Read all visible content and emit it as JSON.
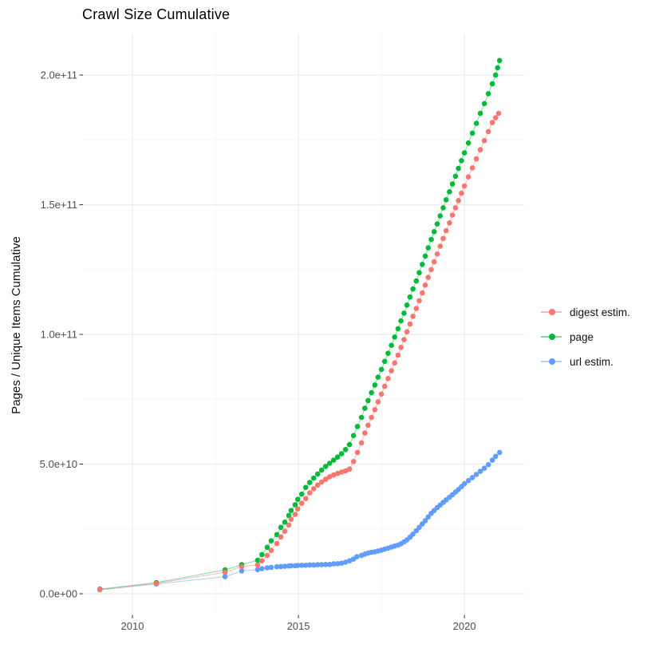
{
  "page": {
    "background": "#ffffff"
  },
  "chart_data": {
    "type": "scatter",
    "title": "Crawl Size Cumulative",
    "xlabel": "",
    "ylabel": "Pages / Unique Items Cumulative",
    "value_unit": "billions (1e9) of pages / unique items",
    "grid": true,
    "legend_position": "right",
    "x_axis": {
      "lim": [
        2008.51,
        2021.8
      ],
      "ticks": [
        {
          "v": 2010,
          "label": "2010"
        },
        {
          "v": 2015,
          "label": "2015"
        },
        {
          "v": 2020,
          "label": "2020"
        }
      ],
      "minor": [
        2012.5,
        2017.5
      ]
    },
    "y_axis": {
      "lim": [
        -8,
        215.7
      ],
      "ticks": [
        {
          "v": 0,
          "label": "0.0e+00"
        },
        {
          "v": 50,
          "label": "5.0e+10"
        },
        {
          "v": 100,
          "label": "1.0e+11"
        },
        {
          "v": 150,
          "label": "1.5e+11"
        },
        {
          "v": 200,
          "label": "2.0e+11"
        }
      ],
      "minor": [
        25,
        75,
        125,
        175
      ]
    },
    "colors": {
      "digest": "#F8766D",
      "page": "#00BA38",
      "url": "#619CFF",
      "grid_major": "#EBEBEB",
      "grid_minor": "#F3F3F3",
      "axis_text": "#4D4D4D",
      "tick_mark": "#333333"
    },
    "series": [
      {
        "name": "digest estim.",
        "color": "#F8766D",
        "points": [
          [
            2009.02,
            1.6
          ],
          [
            2010.72,
            4.0
          ],
          [
            2012.79,
            8.3
          ],
          [
            2013.29,
            10.5
          ],
          [
            2013.77,
            11.1
          ],
          [
            2013.9,
            12.7
          ],
          [
            2014.06,
            14.8
          ],
          [
            2014.18,
            16.7
          ],
          [
            2014.35,
            19.4
          ],
          [
            2014.47,
            21.9
          ],
          [
            2014.59,
            24.1
          ],
          [
            2014.71,
            26.5
          ],
          [
            2014.78,
            28.7
          ],
          [
            2014.9,
            30.6
          ],
          [
            2014.98,
            32.7
          ],
          [
            2015.1,
            34.9
          ],
          [
            2015.22,
            36.7
          ],
          [
            2015.34,
            38.9
          ],
          [
            2015.46,
            40.5
          ],
          [
            2015.58,
            41.9
          ],
          [
            2015.7,
            43.1
          ],
          [
            2015.82,
            44.2
          ],
          [
            2015.94,
            45.1
          ],
          [
            2016.06,
            45.8
          ],
          [
            2016.18,
            46.4
          ],
          [
            2016.3,
            46.9
          ],
          [
            2016.42,
            47.4
          ],
          [
            2016.54,
            48.1
          ],
          [
            2016.66,
            51.0
          ],
          [
            2016.78,
            54.5
          ],
          [
            2016.9,
            58.2
          ],
          [
            2017.0,
            62.0
          ],
          [
            2017.1,
            65.0
          ],
          [
            2017.2,
            68.0
          ],
          [
            2017.3,
            71.0
          ],
          [
            2017.4,
            74.0
          ],
          [
            2017.5,
            77.0
          ],
          [
            2017.6,
            80.0
          ],
          [
            2017.7,
            83.0
          ],
          [
            2017.8,
            86.0
          ],
          [
            2017.9,
            89.0
          ],
          [
            2018.0,
            92.0
          ],
          [
            2018.09,
            95.0
          ],
          [
            2018.18,
            98.0
          ],
          [
            2018.27,
            101.0
          ],
          [
            2018.36,
            104.0
          ],
          [
            2018.45,
            107.0
          ],
          [
            2018.55,
            110.0
          ],
          [
            2018.64,
            113.0
          ],
          [
            2018.73,
            116.0
          ],
          [
            2018.82,
            119.0
          ],
          [
            2018.91,
            122.0
          ],
          [
            2019.0,
            125.0
          ],
          [
            2019.09,
            128.0
          ],
          [
            2019.18,
            131.0
          ],
          [
            2019.27,
            134.0
          ],
          [
            2019.36,
            137.0
          ],
          [
            2019.45,
            140.0
          ],
          [
            2019.55,
            143.0
          ],
          [
            2019.64,
            146.0
          ],
          [
            2019.73,
            148.8
          ],
          [
            2019.82,
            151.6
          ],
          [
            2019.91,
            154.4
          ],
          [
            2020.0,
            157.2
          ],
          [
            2020.12,
            160.7
          ],
          [
            2020.24,
            164.2
          ],
          [
            2020.36,
            167.7
          ],
          [
            2020.48,
            171.2
          ],
          [
            2020.6,
            174.7
          ],
          [
            2020.72,
            178.2
          ],
          [
            2020.84,
            181.7
          ],
          [
            2020.94,
            183.5
          ],
          [
            2021.03,
            185.2
          ]
        ]
      },
      {
        "name": "page",
        "color": "#00BA38",
        "points": [
          [
            2009.02,
            1.8
          ],
          [
            2010.72,
            4.3
          ],
          [
            2012.79,
            9.2
          ],
          [
            2013.29,
            11.2
          ],
          [
            2013.77,
            12.9
          ],
          [
            2013.9,
            15.1
          ],
          [
            2014.06,
            17.9
          ],
          [
            2014.18,
            20.4
          ],
          [
            2014.35,
            22.8
          ],
          [
            2014.47,
            25.6
          ],
          [
            2014.59,
            27.6
          ],
          [
            2014.71,
            30.2
          ],
          [
            2014.78,
            32.1
          ],
          [
            2014.9,
            34.3
          ],
          [
            2014.98,
            36.4
          ],
          [
            2015.1,
            38.4
          ],
          [
            2015.22,
            41.0
          ],
          [
            2015.34,
            42.9
          ],
          [
            2015.46,
            44.6
          ],
          [
            2015.58,
            46.2
          ],
          [
            2015.7,
            47.7
          ],
          [
            2015.82,
            49.1
          ],
          [
            2015.94,
            50.3
          ],
          [
            2016.06,
            51.5
          ],
          [
            2016.18,
            52.7
          ],
          [
            2016.3,
            54.0
          ],
          [
            2016.42,
            55.6
          ],
          [
            2016.54,
            57.5
          ],
          [
            2016.66,
            61.0
          ],
          [
            2016.78,
            64.5
          ],
          [
            2016.9,
            68.0
          ],
          [
            2017.0,
            71.5
          ],
          [
            2017.1,
            74.5
          ],
          [
            2017.2,
            77.5
          ],
          [
            2017.3,
            80.5
          ],
          [
            2017.4,
            83.5
          ],
          [
            2017.5,
            86.5
          ],
          [
            2017.6,
            89.6
          ],
          [
            2017.7,
            92.7
          ],
          [
            2017.8,
            95.8
          ],
          [
            2017.9,
            99.0
          ],
          [
            2018.0,
            102.2
          ],
          [
            2018.09,
            105.2
          ],
          [
            2018.18,
            108.2
          ],
          [
            2018.27,
            111.3
          ],
          [
            2018.36,
            114.4
          ],
          [
            2018.45,
            117.5
          ],
          [
            2018.55,
            120.6
          ],
          [
            2018.64,
            123.8
          ],
          [
            2018.73,
            127.0
          ],
          [
            2018.82,
            130.2
          ],
          [
            2018.91,
            133.4
          ],
          [
            2019.0,
            136.6
          ],
          [
            2019.09,
            139.6
          ],
          [
            2019.18,
            142.6
          ],
          [
            2019.27,
            145.7
          ],
          [
            2019.36,
            148.8
          ],
          [
            2019.45,
            151.9
          ],
          [
            2019.55,
            155.0
          ],
          [
            2019.64,
            158.0
          ],
          [
            2019.73,
            161.0
          ],
          [
            2019.82,
            164.0
          ],
          [
            2019.91,
            167.0
          ],
          [
            2020.0,
            170.0
          ],
          [
            2020.12,
            173.8
          ],
          [
            2020.24,
            177.6
          ],
          [
            2020.36,
            181.4
          ],
          [
            2020.48,
            185.2
          ],
          [
            2020.6,
            189.0
          ],
          [
            2020.72,
            192.8
          ],
          [
            2020.84,
            196.6
          ],
          [
            2020.94,
            200.0
          ],
          [
            2021.0,
            202.8
          ],
          [
            2021.06,
            205.6
          ]
        ]
      },
      {
        "name": "url estim.",
        "color": "#619CFF",
        "points": [
          [
            2009.02,
            1.5
          ],
          [
            2010.72,
            3.8
          ],
          [
            2012.79,
            6.6
          ],
          [
            2013.29,
            8.8
          ],
          [
            2013.77,
            9.3
          ],
          [
            2013.9,
            9.7
          ],
          [
            2014.06,
            10.0
          ],
          [
            2014.18,
            10.2
          ],
          [
            2014.35,
            10.4
          ],
          [
            2014.47,
            10.5
          ],
          [
            2014.59,
            10.6
          ],
          [
            2014.71,
            10.7
          ],
          [
            2014.78,
            10.8
          ],
          [
            2014.9,
            10.8
          ],
          [
            2014.98,
            10.9
          ],
          [
            2015.1,
            11.0
          ],
          [
            2015.22,
            11.0
          ],
          [
            2015.34,
            11.1
          ],
          [
            2015.46,
            11.1
          ],
          [
            2015.58,
            11.2
          ],
          [
            2015.7,
            11.2
          ],
          [
            2015.82,
            11.3
          ],
          [
            2015.94,
            11.3
          ],
          [
            2016.06,
            11.5
          ],
          [
            2016.18,
            11.6
          ],
          [
            2016.3,
            11.8
          ],
          [
            2016.42,
            12.2
          ],
          [
            2016.54,
            12.7
          ],
          [
            2016.66,
            13.4
          ],
          [
            2016.76,
            14.3
          ],
          [
            2016.9,
            14.8
          ],
          [
            2017.0,
            15.3
          ],
          [
            2017.1,
            15.7
          ],
          [
            2017.2,
            16.0
          ],
          [
            2017.3,
            16.2
          ],
          [
            2017.4,
            16.5
          ],
          [
            2017.5,
            16.8
          ],
          [
            2017.6,
            17.2
          ],
          [
            2017.7,
            17.6
          ],
          [
            2017.8,
            18.0
          ],
          [
            2017.9,
            18.4
          ],
          [
            2018.0,
            18.8
          ],
          [
            2018.09,
            19.3
          ],
          [
            2018.18,
            20.0
          ],
          [
            2018.27,
            20.8
          ],
          [
            2018.36,
            21.8
          ],
          [
            2018.45,
            23.0
          ],
          [
            2018.55,
            24.3
          ],
          [
            2018.64,
            25.6
          ],
          [
            2018.73,
            26.9
          ],
          [
            2018.82,
            28.2
          ],
          [
            2018.91,
            29.6
          ],
          [
            2019.0,
            31.0
          ],
          [
            2019.09,
            32.1
          ],
          [
            2019.18,
            33.2
          ],
          [
            2019.27,
            34.2
          ],
          [
            2019.36,
            35.2
          ],
          [
            2019.45,
            36.2
          ],
          [
            2019.55,
            37.2
          ],
          [
            2019.64,
            38.2
          ],
          [
            2019.73,
            39.2
          ],
          [
            2019.82,
            40.2
          ],
          [
            2019.91,
            41.3
          ],
          [
            2020.0,
            42.4
          ],
          [
            2020.12,
            43.6
          ],
          [
            2020.24,
            44.8
          ],
          [
            2020.36,
            46.0
          ],
          [
            2020.48,
            47.2
          ],
          [
            2020.6,
            48.4
          ],
          [
            2020.72,
            49.8
          ],
          [
            2020.84,
            51.5
          ],
          [
            2020.94,
            53.0
          ],
          [
            2021.06,
            54.5
          ]
        ]
      }
    ]
  }
}
